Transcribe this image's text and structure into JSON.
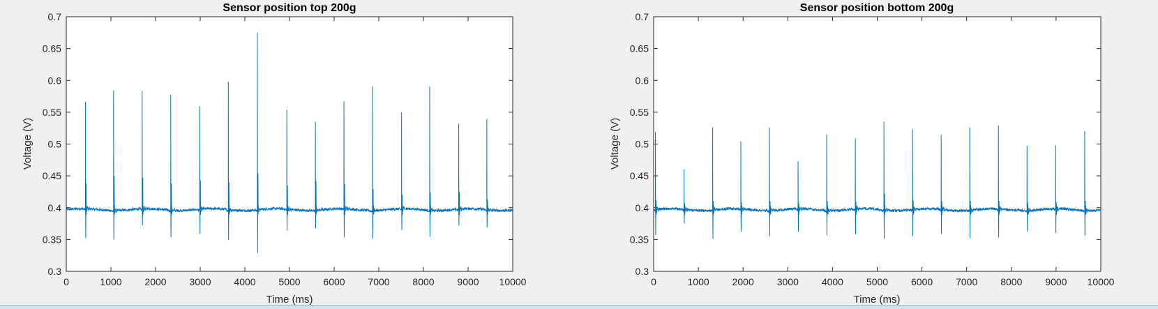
{
  "chart_data": [
    {
      "type": "line",
      "title": "Sensor position top 200g",
      "xlabel": "Time (ms)",
      "ylabel": "Voltage (V)",
      "xlim": [
        0,
        10000
      ],
      "ylim": [
        0.3,
        0.7
      ],
      "xticks": [
        "0",
        "1000",
        "2000",
        "3000",
        "4000",
        "5000",
        "6000",
        "7000",
        "8000",
        "9000",
        "10000"
      ],
      "yticks": [
        "0.3",
        "0.35",
        "0.4",
        "0.45",
        "0.5",
        "0.55",
        "0.6",
        "0.65",
        "0.7"
      ],
      "color": "#0072BD",
      "grid": false,
      "baseline": 0.397,
      "noise": 0.002,
      "pulses": [
        {
          "t": 430,
          "peak": 0.566,
          "min": 0.352,
          "sec": 0.438
        },
        {
          "t": 1060,
          "peak": 0.584,
          "min": 0.35,
          "sec": 0.45
        },
        {
          "t": 1700,
          "peak": 0.583,
          "min": 0.372,
          "sec": 0.447
        },
        {
          "t": 2340,
          "peak": 0.578,
          "min": 0.354,
          "sec": 0.438
        },
        {
          "t": 2990,
          "peak": 0.559,
          "min": 0.359,
          "sec": 0.443
        },
        {
          "t": 3630,
          "peak": 0.598,
          "min": 0.349,
          "sec": 0.44
        },
        {
          "t": 4280,
          "peak": 0.675,
          "min": 0.329,
          "sec": 0.454
        },
        {
          "t": 4940,
          "peak": 0.554,
          "min": 0.364,
          "sec": 0.435
        },
        {
          "t": 5580,
          "peak": 0.535,
          "min": 0.368,
          "sec": 0.442
        },
        {
          "t": 6220,
          "peak": 0.567,
          "min": 0.354,
          "sec": 0.437
        },
        {
          "t": 6860,
          "peak": 0.591,
          "min": 0.351,
          "sec": 0.429
        },
        {
          "t": 7510,
          "peak": 0.55,
          "min": 0.365,
          "sec": 0.42
        },
        {
          "t": 8140,
          "peak": 0.59,
          "min": 0.354,
          "sec": 0.424
        },
        {
          "t": 8790,
          "peak": 0.532,
          "min": 0.372,
          "sec": 0.425
        },
        {
          "t": 9420,
          "peak": 0.539,
          "min": 0.369,
          "sec": 0.413
        }
      ]
    },
    {
      "type": "line",
      "title": "Sensor position bottom 200g",
      "xlabel": "Time (ms)",
      "ylabel": "Voltage (V)",
      "xlim": [
        0,
        10000
      ],
      "ylim": [
        0.3,
        0.7
      ],
      "xticks": [
        "0",
        "1000",
        "2000",
        "3000",
        "4000",
        "5000",
        "6000",
        "7000",
        "8000",
        "9000",
        "10000"
      ],
      "yticks": [
        "0.3",
        "0.35",
        "0.4",
        "0.45",
        "0.5",
        "0.55",
        "0.6",
        "0.65",
        "0.7"
      ],
      "color": "#0072BD",
      "grid": false,
      "baseline": 0.397,
      "noise": 0.002,
      "pulses": [
        {
          "t": 40,
          "peak": 0.519,
          "min": 0.357,
          "sec": 0.412
        },
        {
          "t": 680,
          "peak": 0.46,
          "min": 0.375,
          "sec": 0.405
        },
        {
          "t": 1320,
          "peak": 0.526,
          "min": 0.351,
          "sec": 0.41
        },
        {
          "t": 1950,
          "peak": 0.504,
          "min": 0.362,
          "sec": 0.408
        },
        {
          "t": 2590,
          "peak": 0.526,
          "min": 0.355,
          "sec": 0.41
        },
        {
          "t": 3230,
          "peak": 0.473,
          "min": 0.362,
          "sec": 0.407
        },
        {
          "t": 3870,
          "peak": 0.515,
          "min": 0.357,
          "sec": 0.41
        },
        {
          "t": 4510,
          "peak": 0.509,
          "min": 0.358,
          "sec": 0.409
        },
        {
          "t": 5150,
          "peak": 0.535,
          "min": 0.351,
          "sec": 0.422
        },
        {
          "t": 5790,
          "peak": 0.523,
          "min": 0.355,
          "sec": 0.412
        },
        {
          "t": 6430,
          "peak": 0.514,
          "min": 0.359,
          "sec": 0.41
        },
        {
          "t": 7070,
          "peak": 0.526,
          "min": 0.352,
          "sec": 0.411
        },
        {
          "t": 7710,
          "peak": 0.529,
          "min": 0.353,
          "sec": 0.411
        },
        {
          "t": 8350,
          "peak": 0.497,
          "min": 0.363,
          "sec": 0.408
        },
        {
          "t": 8990,
          "peak": 0.498,
          "min": 0.36,
          "sec": 0.409
        },
        {
          "t": 9640,
          "peak": 0.52,
          "min": 0.356,
          "sec": 0.411
        }
      ]
    }
  ]
}
